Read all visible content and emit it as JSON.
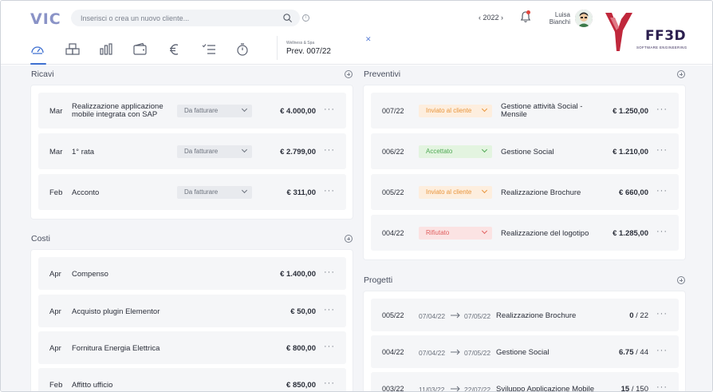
{
  "header": {
    "logo": "VIC",
    "search_placeholder": "Inserisci o crea un nuovo cliente...",
    "year": "2022",
    "user_first": "Luisa",
    "user_last": "Bianchi",
    "brand_name": "FF3D",
    "brand_sub": "SOFTWARE ENGINEERING",
    "project_tab": {
      "client": "Wellness & Spa",
      "title": "Prev. 007/22"
    }
  },
  "nav_icons": [
    "dashboard-icon",
    "boxes-icon",
    "bar-chart-icon",
    "wallet-icon",
    "euro-icon",
    "list-icon",
    "timer-icon"
  ],
  "ricavi": {
    "title": "Ricavi",
    "rows": [
      {
        "month": "Mar",
        "desc": "Realizzazione applicazione mobile integrata con SAP",
        "status": "Da fatturare",
        "amount": "€ 4.000,00"
      },
      {
        "month": "Mar",
        "desc": "1° rata",
        "status": "Da fatturare",
        "amount": "€ 2.799,00"
      },
      {
        "month": "Feb",
        "desc": "Acconto",
        "status": "Da fatturare",
        "amount": "€ 311,00"
      }
    ]
  },
  "costi": {
    "title": "Costi",
    "rows": [
      {
        "month": "Apr",
        "desc": "Compenso",
        "amount": "€ 1.400,00"
      },
      {
        "month": "Apr",
        "desc": "Acquisto plugin Elementor",
        "amount": "€ 50,00"
      },
      {
        "month": "Apr",
        "desc": "Fornitura Energia Elettrica",
        "amount": "€ 800,00"
      },
      {
        "month": "Feb",
        "desc": "Affitto ufficio",
        "amount": "€ 850,00"
      }
    ]
  },
  "preventivi": {
    "title": "Preventivi",
    "rows": [
      {
        "code": "007/22",
        "status": "Inviato al cliente",
        "desc": "Gestione attività Social - Mensile",
        "amount": "€ 1.250,00"
      },
      {
        "code": "006/22",
        "status": "Accettato",
        "desc": "Gestione Social",
        "amount": "€ 1.210,00"
      },
      {
        "code": "005/22",
        "status": "Inviato al cliente",
        "desc": "Realizzazione Brochure",
        "amount": "€ 660,00"
      },
      {
        "code": "004/22",
        "status": "Rifiutato",
        "desc": "Realizzazione del logotipo",
        "amount": "€ 1.285,00"
      }
    ]
  },
  "progetti": {
    "title": "Progetti",
    "rows": [
      {
        "code": "005/22",
        "start": "07/04/22",
        "end": "07/05/22",
        "desc": "Realizzazione Brochure",
        "hours": "0",
        "total": "/ 22"
      },
      {
        "code": "004/22",
        "start": "07/04/22",
        "end": "07/05/22",
        "desc": "Gestione Social",
        "hours": "6.75",
        "total": "/ 44"
      },
      {
        "code": "003/22",
        "start": "11/03/22",
        "end": "22/07/22",
        "desc": "Sviluppo Applicazione Mobile",
        "hours": "15",
        "total": "/ 150"
      }
    ]
  },
  "colors": {
    "accent": "#3d6fd0",
    "status_orange": "#e8943a",
    "status_green": "#4ea853",
    "status_red": "#e06060",
    "brand": "#c0283c"
  }
}
